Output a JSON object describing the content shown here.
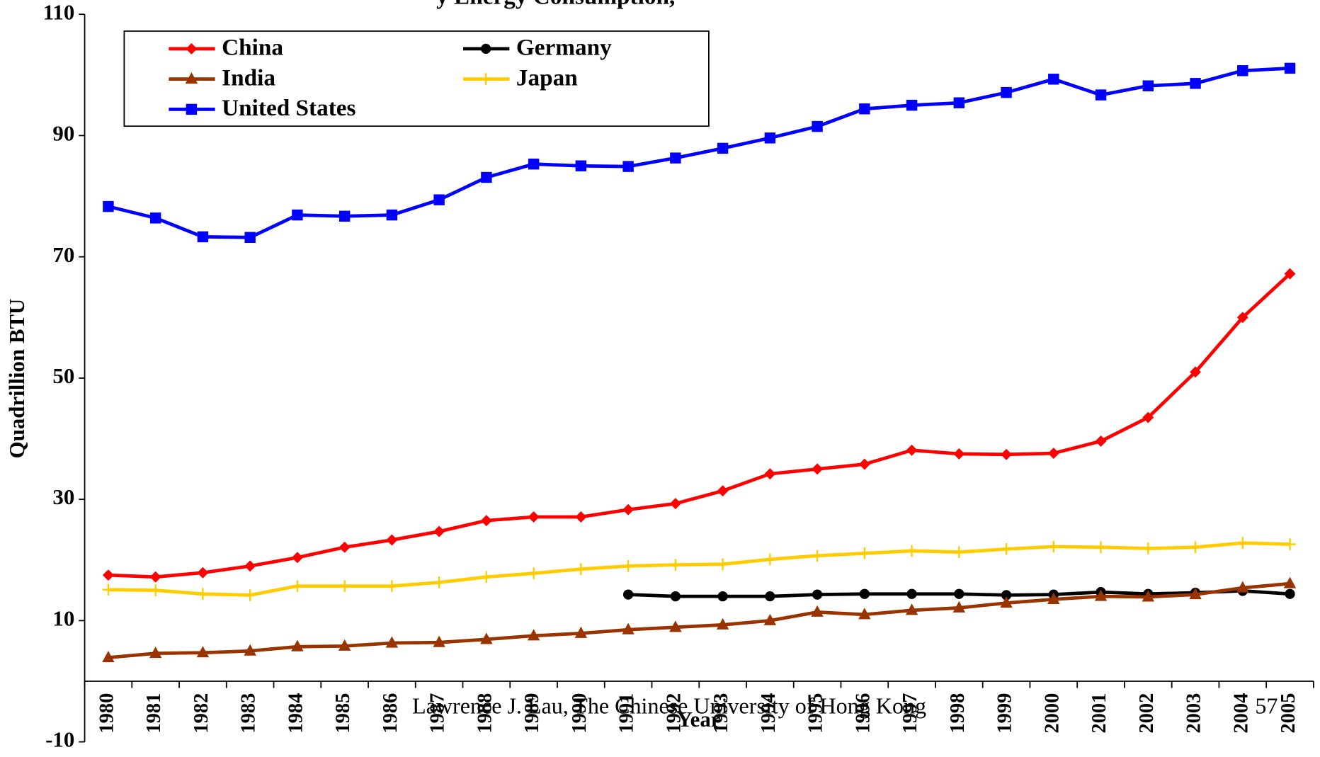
{
  "chart_data": {
    "type": "line",
    "title": "y Energy Consumption,",
    "y_label": "Quadrillion BTU",
    "x_label": "Year",
    "annotations": [
      "Lawrence J. Lau, The Chinese University of Hong Kong",
      "57"
    ],
    "categories": [
      "1980",
      "1981",
      "1982",
      "1983",
      "1984",
      "1985",
      "1986",
      "1987",
      "1988",
      "1989",
      "1990",
      "1991",
      "1992",
      "1993",
      "1994",
      "1995",
      "1996",
      "1997",
      "1998",
      "1999",
      "2000",
      "2001",
      "2002",
      "2003",
      "2004",
      "2005"
    ],
    "ylim": [
      -10,
      110
    ],
    "yticks": [
      -10,
      10,
      30,
      50,
      70,
      90,
      110
    ],
    "series": [
      {
        "name": "China",
        "color": "#ff0000",
        "marker": "diamond",
        "values": [
          17.5,
          17.2,
          17.9,
          19.0,
          20.4,
          22.1,
          23.3,
          24.7,
          26.5,
          27.1,
          27.1,
          28.3,
          29.3,
          31.4,
          34.2,
          35.0,
          35.8,
          38.1,
          37.5,
          37.4,
          37.6,
          39.6,
          43.5,
          51.0,
          60.0,
          67.2
        ]
      },
      {
        "name": "Germany",
        "color": "#000000",
        "marker": "circle",
        "values": [
          null,
          null,
          null,
          null,
          null,
          null,
          null,
          null,
          null,
          null,
          null,
          14.3,
          14.0,
          14.0,
          14.0,
          14.3,
          14.4,
          14.4,
          14.4,
          14.2,
          14.3,
          14.7,
          14.4,
          14.6,
          14.9,
          14.4
        ]
      },
      {
        "name": "India",
        "color": "#993300",
        "marker": "triangle",
        "values": [
          3.9,
          4.6,
          4.7,
          5.0,
          5.7,
          5.8,
          6.3,
          6.4,
          6.9,
          7.5,
          7.9,
          8.5,
          8.9,
          9.3,
          10.0,
          11.4,
          11.0,
          11.7,
          12.1,
          12.9,
          13.5,
          14.0,
          13.9,
          14.3,
          15.4,
          16.1
        ]
      },
      {
        "name": "Japan",
        "color": "#ffcc00",
        "marker": "plus",
        "values": [
          15.1,
          15.0,
          14.4,
          14.2,
          15.7,
          15.7,
          15.7,
          16.3,
          17.2,
          17.8,
          18.5,
          19.0,
          19.2,
          19.3,
          20.1,
          20.7,
          21.1,
          21.5,
          21.3,
          21.8,
          22.2,
          22.1,
          21.9,
          22.1,
          22.8,
          22.6
        ]
      },
      {
        "name": "United States",
        "color": "#0000ff",
        "marker": "square",
        "values": [
          78.3,
          76.4,
          73.3,
          73.2,
          76.9,
          76.7,
          76.9,
          79.4,
          83.1,
          85.3,
          85.0,
          84.9,
          86.3,
          87.9,
          89.6,
          91.5,
          94.4,
          95.0,
          95.4,
          97.1,
          99.3,
          96.7,
          98.2,
          98.6,
          100.7,
          101.1
        ]
      }
    ]
  }
}
